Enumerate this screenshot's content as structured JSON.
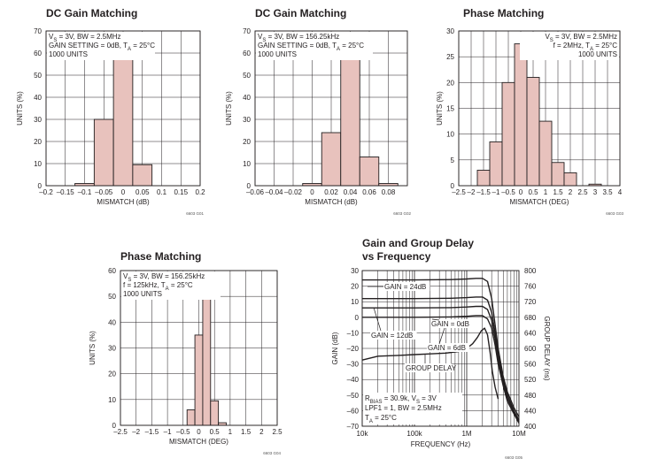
{
  "chart_data": [
    {
      "id": "g01",
      "type": "bar",
      "title": "DC Gain Matching",
      "xlabel": "MISMATCH (dB)",
      "ylabel": "UNITS (%)",
      "xlim": [
        -0.2,
        0.2
      ],
      "ylim": [
        0,
        70
      ],
      "xticks": [
        -0.2,
        -0.15,
        -0.1,
        -0.05,
        0,
        0.05,
        0.1,
        0.15,
        0.2
      ],
      "xtick_labels": [
        "–0.2",
        "–0.15",
        "–0.1",
        "–0.05",
        "0",
        "0.05",
        "0.1",
        "0.15",
        "0.2"
      ],
      "yticks": [
        0,
        10,
        20,
        30,
        40,
        50,
        60,
        70
      ],
      "bin_width": 0.05,
      "bins": [
        {
          "center": -0.1,
          "value": 1
        },
        {
          "center": -0.05,
          "value": 30
        },
        {
          "center": 0.0,
          "value": 59
        },
        {
          "center": 0.05,
          "value": 9.5
        }
      ],
      "annotation": [
        {
          "main": "V",
          "sub": "S",
          "rest": " = 3V, BW = 2.5MHz"
        },
        {
          "main": "GAIN SETTING = 0dB, T",
          "sub": "A",
          "rest": " = 25°C"
        },
        {
          "main": "1000 UNITS",
          "sub": "",
          "rest": ""
        }
      ],
      "annotation_align": "left",
      "code": "6603 G01"
    },
    {
      "id": "g02",
      "type": "bar",
      "title": "DC Gain Matching",
      "xlabel": "MISMATCH (dB)",
      "ylabel": "UNITS (%)",
      "xlim": [
        -0.06,
        0.1
      ],
      "ylim": [
        0,
        70
      ],
      "xticks": [
        -0.06,
        -0.04,
        -0.02,
        0,
        0.02,
        0.04,
        0.06,
        0.08
      ],
      "xtick_labels": [
        "–0.06",
        "–0.04",
        "–0.02",
        "0",
        "0.02",
        "0.04",
        "0.06",
        "0.08"
      ],
      "yticks": [
        0,
        10,
        20,
        30,
        40,
        50,
        60,
        70
      ],
      "bin_width": 0.02,
      "bins": [
        {
          "center": 0.0,
          "value": 1
        },
        {
          "center": 0.02,
          "value": 24
        },
        {
          "center": 0.04,
          "value": 60
        },
        {
          "center": 0.06,
          "value": 13
        },
        {
          "center": 0.08,
          "value": 1
        }
      ],
      "annotation": [
        {
          "main": "V",
          "sub": "S",
          "rest": " = 3V, BW = 156.25kHz"
        },
        {
          "main": "GAIN SETTING = 0dB, T",
          "sub": "A",
          "rest": " = 25°C"
        },
        {
          "main": "1000 UNITS",
          "sub": "",
          "rest": ""
        }
      ],
      "annotation_align": "left",
      "code": "6603 G02"
    },
    {
      "id": "g03",
      "type": "bar",
      "title": "Phase Matching",
      "xlabel": "MISMATCH (DEG)",
      "ylabel": "UNITS (%)",
      "xlim": [
        -2.5,
        4
      ],
      "ylim": [
        0,
        30
      ],
      "xticks": [
        -2.5,
        -2,
        -1.5,
        -1,
        -0.5,
        0,
        0.5,
        1,
        1.5,
        2,
        2.5,
        3,
        3.5,
        4
      ],
      "xtick_labels": [
        "–2.5",
        "–2",
        "–1.5",
        "–1",
        "–0.5",
        "0",
        "0.5",
        "1",
        "1.5",
        "2",
        "2.5",
        "3",
        "3.5",
        "4"
      ],
      "yticks": [
        0,
        5,
        10,
        15,
        20,
        25,
        30
      ],
      "bin_width": 0.5,
      "bins": [
        {
          "center": -1.5,
          "value": 3
        },
        {
          "center": -1.0,
          "value": 8.5
        },
        {
          "center": -0.5,
          "value": 20
        },
        {
          "center": 0.0,
          "value": 27.5
        },
        {
          "center": 0.5,
          "value": 21
        },
        {
          "center": 1.0,
          "value": 12.5
        },
        {
          "center": 1.5,
          "value": 4.5
        },
        {
          "center": 2.0,
          "value": 2.5
        },
        {
          "center": 3.0,
          "value": 0.3
        }
      ],
      "annotation": [
        {
          "main": "V",
          "sub": "S",
          "rest": " = 3V, BW = 2.5MHz"
        },
        {
          "main": "f = 2MHz, T",
          "sub": "A",
          "rest": " = 25°C"
        },
        {
          "main": "1000 UNITS",
          "sub": "",
          "rest": ""
        }
      ],
      "annotation_align": "right",
      "code": "6603 G03"
    },
    {
      "id": "g04",
      "type": "bar",
      "title": "Phase Matching",
      "xlabel": "MISMATCH (DEG)",
      "ylabel": "UNITS (%)",
      "xlim": [
        -2.5,
        2.5
      ],
      "ylim": [
        0,
        60
      ],
      "xticks": [
        -2.5,
        -2,
        -1.5,
        -1,
        -0.5,
        0,
        0.5,
        1,
        1.5,
        2,
        2.5
      ],
      "xtick_labels": [
        "–2.5",
        "–2",
        "–1.5",
        "–1",
        "–0.5",
        "0",
        "0.5",
        "1",
        "1.5",
        "2",
        "2.5"
      ],
      "yticks": [
        0,
        10,
        20,
        30,
        40,
        50,
        60
      ],
      "bin_width": 0.25,
      "bins": [
        {
          "center": -0.25,
          "value": 6
        },
        {
          "center": 0.0,
          "value": 35
        },
        {
          "center": 0.25,
          "value": 50
        },
        {
          "center": 0.5,
          "value": 9.5
        },
        {
          "center": 0.75,
          "value": 1
        }
      ],
      "annotation": [
        {
          "main": "V",
          "sub": "S",
          "rest": " = 3V, BW = 156.25kHz"
        },
        {
          "main": "f = 125kHz, T",
          "sub": "A",
          "rest": " = 25°C"
        },
        {
          "main": "1000 UNITS",
          "sub": "",
          "rest": ""
        }
      ],
      "annotation_align": "left",
      "code": "6603 G04"
    },
    {
      "id": "g05",
      "type": "line",
      "title": "Gain and Group Delay",
      "subtitle": "vs Frequency",
      "xlabel": "FREQUENCY (Hz)",
      "ylabel": "GAIN (dB)",
      "ylabel_right": "GROUP DELAY (ns)",
      "xscale": "log",
      "xlim": [
        10000,
        10000000
      ],
      "ylim": [
        -70,
        30
      ],
      "ylim_right": [
        400,
        800
      ],
      "xticks": [
        10000,
        100000,
        1000000,
        10000000
      ],
      "xtick_labels": [
        "10k",
        "100k",
        "1M",
        "10M"
      ],
      "yticks": [
        -70,
        -60,
        -50,
        -40,
        -30,
        -20,
        -10,
        0,
        10,
        20,
        30
      ],
      "ytick_labels": [
        "–70",
        "–60",
        "–50",
        "–40",
        "–30",
        "–20",
        "–10",
        "0",
        "10",
        "20",
        "30"
      ],
      "yticks_right": [
        400,
        440,
        480,
        520,
        560,
        600,
        640,
        680,
        720,
        760,
        800
      ],
      "series": [
        {
          "name": "GAIN = 24dB",
          "x": [
            10000,
            100000,
            500000,
            1000000,
            1500000,
            2000000,
            2500000,
            3000000,
            3500000,
            4000000,
            5000000,
            6000000,
            8000000,
            10000000
          ],
          "y": [
            24,
            24,
            24.2,
            24.6,
            25,
            25,
            23,
            12,
            -5,
            -20,
            -38,
            -48,
            -58,
            -64
          ]
        },
        {
          "name": "GAIN = 12dB",
          "x": [
            10000,
            100000,
            500000,
            1000000,
            1500000,
            2000000,
            2500000,
            3000000,
            3500000,
            4000000,
            5000000,
            6000000,
            8000000,
            10000000
          ],
          "y": [
            12,
            12,
            12.2,
            12.6,
            13,
            13,
            11,
            3,
            -10,
            -24,
            -40,
            -50,
            -60,
            -66
          ]
        },
        {
          "name": "GAIN = 6dB",
          "x": [
            10000,
            100000,
            500000,
            1000000,
            1500000,
            2000000,
            2500000,
            3000000,
            3500000,
            4000000,
            5000000,
            6000000,
            8000000,
            10000000
          ],
          "y": [
            6,
            6,
            6.2,
            6.6,
            7,
            7,
            5,
            -2,
            -14,
            -27,
            -42,
            -52,
            -61,
            -67
          ]
        },
        {
          "name": "GAIN = 0dB",
          "x": [
            10000,
            100000,
            500000,
            1000000,
            1500000,
            2000000,
            2500000,
            3000000,
            3500000,
            4000000,
            5000000,
            6000000,
            8000000,
            10000000
          ],
          "y": [
            0,
            0,
            0.2,
            0.6,
            1,
            1,
            -1,
            -7,
            -18,
            -30,
            -44,
            -54,
            -62,
            -68
          ]
        },
        {
          "name": "GROUP DELAY",
          "axis": "right",
          "x": [
            10000,
            20000,
            50000,
            100000,
            200000,
            400000,
            700000,
            1000000,
            1300000,
            1600000,
            1900000,
            2200000,
            2500000,
            2800000,
            3100000,
            3500000,
            4000000
          ],
          "y": [
            570,
            580,
            582,
            584,
            586,
            588,
            592,
            600,
            612,
            628,
            645,
            652,
            635,
            590,
            540,
            500,
            470
          ]
        }
      ],
      "labels": [
        {
          "series": "GAIN = 24dB",
          "text": "GAIN = 24dB"
        },
        {
          "series": "GAIN = 12dB",
          "text": "GAIN = 12dB"
        },
        {
          "series": "GAIN = 6dB",
          "text": "GAIN = 6dB"
        },
        {
          "series": "GAIN = 0dB",
          "text": "GAIN = 0dB"
        },
        {
          "series": "GROUP DELAY",
          "text": "GROUP DELAY"
        }
      ],
      "annotation": [
        {
          "main": "R",
          "sub": "BIAS",
          "rest": " = 30.9k, V",
          "sub2": "S",
          "rest2": " = 3V"
        },
        {
          "main": "LPF1 = 1, BW = 2.5MHz",
          "sub": "",
          "rest": ""
        },
        {
          "main": "T",
          "sub": "A",
          "rest": " = 25°C"
        }
      ],
      "code": "6603 G05"
    }
  ],
  "colors": {
    "bar_fill": "#e8c2bd",
    "ink": "#231f20",
    "grid": "#231f20"
  }
}
